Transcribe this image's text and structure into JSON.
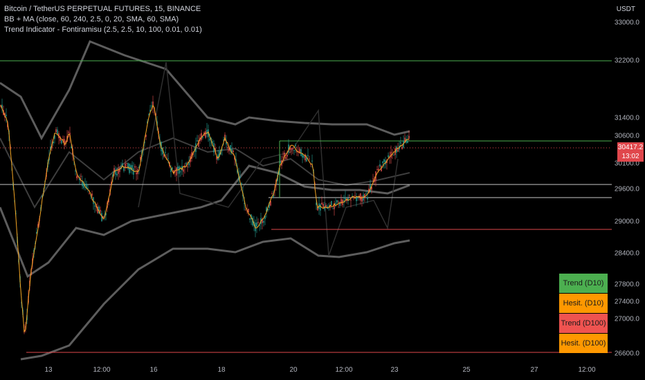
{
  "legend": {
    "title": "Bitcoin / TetherUS PERPETUAL FUTURES, 15, BINANCE",
    "line2": "BB + MA (close, 60, 240, 2.5, 0, 20, SMA, 60, SMA)",
    "line3": "Trend Indicator - Fontiramisu (2.5, 2.5, 10, 100, 0.01, 0.01)"
  },
  "axis": {
    "unit": "USDT",
    "y_ticks": [
      "33000.0",
      "32200.0",
      "31400.0",
      "30600.0",
      "30100.0",
      "29600.0",
      "29000.0",
      "28400.0",
      "27800.0",
      "27400.0",
      "27000.0",
      "26600.0"
    ],
    "x_ticks": [
      "13",
      "12:00",
      "16",
      "18",
      "20",
      "12:00",
      "23",
      "25",
      "27",
      "12:00"
    ]
  },
  "price_tag": {
    "price": "30417.2",
    "countdown": "13:02",
    "color": "#e0474c"
  },
  "trend_table": [
    {
      "label": "Trend (D10)",
      "color": "#4caf50"
    },
    {
      "label": "Hesit. (D10)",
      "color": "#ff9800"
    },
    {
      "label": "Trend (D100)",
      "color": "#ef5350"
    },
    {
      "label": "Hesit. (D100)",
      "color": "#ff9800"
    }
  ],
  "colors": {
    "up": "#26a69a",
    "down": "#ef5350",
    "ma": "#f5a623",
    "bb_outer": "#5d5d5d",
    "bb_inner": "#3e3e3e"
  }
}
